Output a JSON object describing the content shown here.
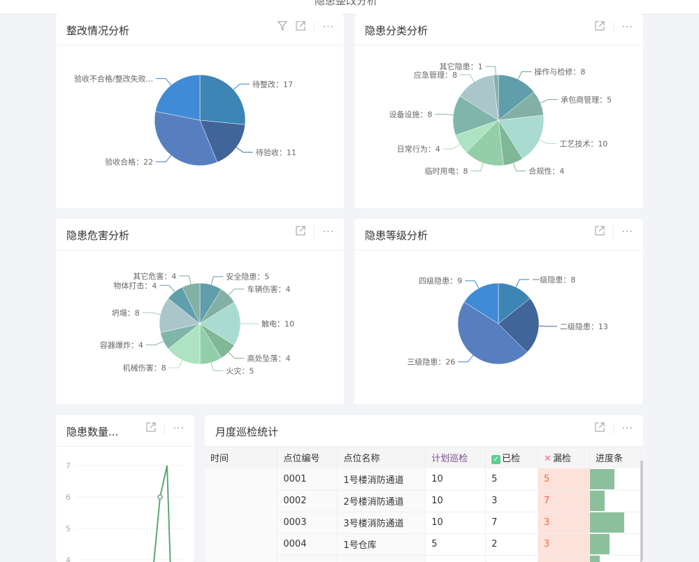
{
  "header": {
    "title": "隐患整改分析"
  },
  "colors": {
    "accent": "#5aa876",
    "miss_bg": "#fde1db",
    "miss_text": "#f26b4a",
    "progress": "#8cc09c"
  },
  "cards": [
    {
      "title": "整改情况分析",
      "icons": [
        "filter-icon",
        "external-link-icon",
        "more-icon"
      ]
    },
    {
      "title": "隐患分类分析",
      "icons": [
        "external-link-icon",
        "more-icon"
      ]
    },
    {
      "title": "隐患危害分析",
      "icons": [
        "external-link-icon",
        "more-icon"
      ]
    },
    {
      "title": "隐患等级分析",
      "icons": [
        "external-link-icon",
        "more-icon"
      ]
    },
    {
      "title": "隐患数量...",
      "icons": [
        "external-link-icon",
        "more-icon"
      ]
    },
    {
      "title": "月度巡检统计",
      "icons": [
        "external-link-icon",
        "more-icon"
      ]
    }
  ],
  "chart_data": [
    {
      "type": "pie",
      "title": "整改情况分析",
      "labels": [
        "待整改：17",
        "待验收：11",
        "验收合格：22",
        "验收不合格/整改失败..."
      ],
      "values": [
        17,
        11,
        22,
        14
      ],
      "colors": [
        "#3d85b4",
        "#416499",
        "#577fbf",
        "#418bd6"
      ]
    },
    {
      "type": "pie",
      "title": "隐患分类分析",
      "labels": [
        "操作与检修：8",
        "承包商管理：5",
        "工艺技术：10",
        "合规性：4",
        "临时用电：8",
        "日常行为：4",
        "设备设施：8",
        "应急管理：8",
        "其它隐患：1"
      ],
      "values": [
        8,
        5,
        10,
        4,
        8,
        4,
        8,
        8,
        1
      ],
      "colors": [
        "#5f9eaa",
        "#82b0a4",
        "#aadbd0",
        "#80b797",
        "#92cfa8",
        "#ade3c2",
        "#7fb6a9",
        "#abc6cb",
        "#86aeae"
      ]
    },
    {
      "type": "pie",
      "title": "隐患危害分析",
      "labels": [
        "安全隐患：5",
        "车辆伤害：4",
        "触电：10",
        "高处坠落：4",
        "火灾：5",
        "机械伤害：8",
        "容器爆炸：4",
        "坍塌：8",
        "物体打击：4",
        "其它危害：4"
      ],
      "values": [
        5,
        4,
        10,
        4,
        5,
        8,
        4,
        8,
        4,
        4
      ],
      "colors": [
        "#5f9eaa",
        "#82b0a4",
        "#aadbd0",
        "#80b797",
        "#92cfa8",
        "#ade3c2",
        "#7fb6a9",
        "#abc6cb",
        "#5f9eaa",
        "#82b0a4"
      ]
    },
    {
      "type": "pie",
      "title": "隐患等级分析",
      "labels": [
        "一级隐患：8",
        "二级隐患：13",
        "三级隐患：26",
        "四级隐患：9"
      ],
      "values": [
        8,
        13,
        26,
        9
      ],
      "colors": [
        "#3d85b4",
        "#416499",
        "#577fbf",
        "#418bd6"
      ]
    },
    {
      "type": "line",
      "title": "隐患数量...",
      "y_ticks": [
        "7",
        "6",
        "5",
        "4"
      ],
      "ylim": [
        4,
        7
      ],
      "color": "#5aa876",
      "visible_points": [
        {
          "y": 4
        },
        {
          "y": 6
        },
        {
          "y": 7
        },
        {
          "y": 4
        }
      ]
    }
  ],
  "table": {
    "columns": [
      "时间",
      "点位编号",
      "点位名称",
      "计划巡检",
      "已检",
      "漏检",
      "进度条"
    ],
    "rows": [
      {
        "code": "0001",
        "name": "1号楼消防通道",
        "plan": "10",
        "done": "5",
        "miss": "5",
        "progress": 0.5
      },
      {
        "code": "0002",
        "name": "2号楼消防通道",
        "plan": "10",
        "done": "3",
        "miss": "7",
        "progress": 0.3
      },
      {
        "code": "0003",
        "name": "3号楼消防通道",
        "plan": "10",
        "done": "7",
        "miss": "3",
        "progress": 0.7
      },
      {
        "code": "0004",
        "name": "1号仓库",
        "plan": "5",
        "done": "2",
        "miss": "3",
        "progress": 0.4
      },
      {
        "code": "",
        "name": "",
        "plan": "",
        "done": "",
        "miss": "",
        "progress": 0.2
      }
    ]
  }
}
